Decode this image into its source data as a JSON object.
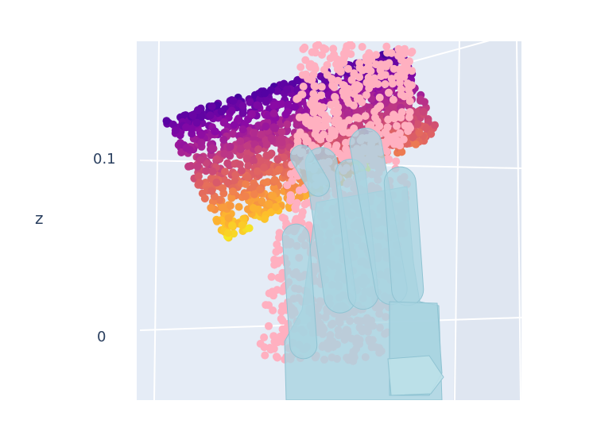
{
  "chart_data": {
    "type": "scatter",
    "variant": "3d-scatter-with-mesh",
    "title": "",
    "axes": {
      "z": {
        "label": "z",
        "ticks": [
          0,
          0.1
        ],
        "tick_labels": [
          "0",
          "0.1"
        ],
        "range": [
          -0.035,
          0.165
        ]
      }
    },
    "grid": true,
    "legend": "none",
    "colors": {
      "scene_background": "#e5ecf6",
      "grid": "#ffffff",
      "text": "#2a3f5f",
      "pink_points": "#ffb0c0",
      "hand_mesh": "#a8d4e0",
      "plasma_low": "#0d0887",
      "plasma_mid": "#cc4778",
      "plasma_high": "#f0f921"
    },
    "series": [
      {
        "kind": "point-cloud",
        "colorscale": "Plasma",
        "z_extent": [
          0.05,
          0.16
        ]
      },
      {
        "kind": "point-cloud",
        "color": "pink",
        "z_extent": [
          -0.01,
          0.165
        ]
      },
      {
        "kind": "mesh",
        "color": "lightblue",
        "opacity": 0.7,
        "z_extent": [
          -0.035,
          0.12
        ]
      }
    ]
  }
}
